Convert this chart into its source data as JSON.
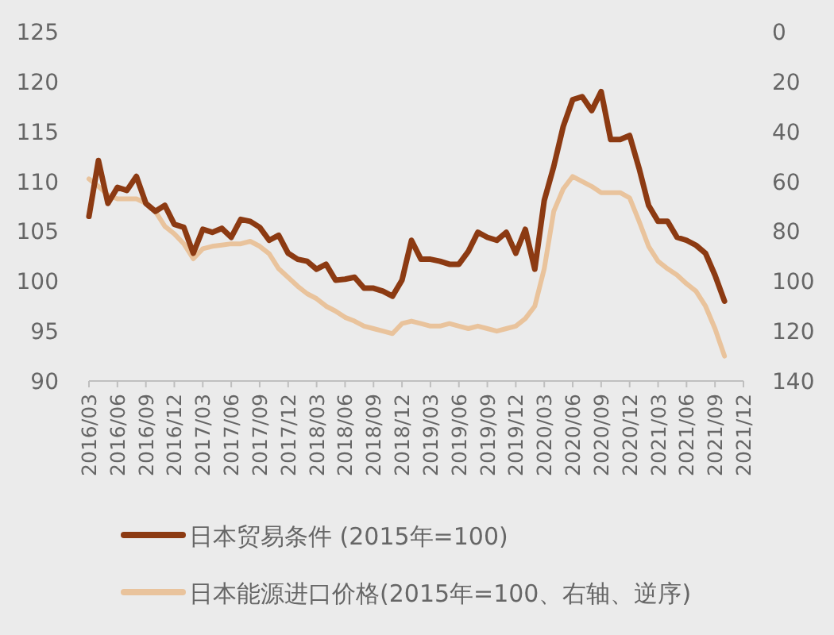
{
  "chart_data": {
    "type": "line",
    "legend": "bottom",
    "x": [
      "2016-03",
      "2016-04",
      "2016-05",
      "2016-06",
      "2016-07",
      "2016-08",
      "2016-09",
      "2016-10",
      "2016-11",
      "2016-12",
      "2017-01",
      "2017-02",
      "2017-03",
      "2017-04",
      "2017-05",
      "2017-06",
      "2017-07",
      "2017-08",
      "2017-09",
      "2017-10",
      "2017-11",
      "2017-12",
      "2018-01",
      "2018-02",
      "2018-03",
      "2018-04",
      "2018-05",
      "2018-06",
      "2018-07",
      "2018-08",
      "2018-09",
      "2018-10",
      "2018-11",
      "2018-12",
      "2019-01",
      "2019-02",
      "2019-03",
      "2019-04",
      "2019-05",
      "2019-06",
      "2019-07",
      "2019-08",
      "2019-09",
      "2019-10",
      "2019-11",
      "2019-12",
      "2020-01",
      "2020-02",
      "2020-03",
      "2020-04",
      "2020-05",
      "2020-06",
      "2020-07",
      "2020-08",
      "2020-09",
      "2020-10",
      "2020-11",
      "2020-12",
      "2021-01",
      "2021-02",
      "2021-03",
      "2021-04",
      "2021-05",
      "2021-06",
      "2021-07",
      "2021-08",
      "2021-09",
      "2021-10"
    ],
    "xlim": [
      "2016-03",
      "2021-12"
    ],
    "xticks": [
      {
        "value": "2016-03",
        "label": "2016/03"
      },
      {
        "value": "2016-06",
        "label": "2016/06"
      },
      {
        "value": "2016-09",
        "label": "2016/09"
      },
      {
        "value": "2016-12",
        "label": "2016/12"
      },
      {
        "value": "2017-03",
        "label": "2017/03"
      },
      {
        "value": "2017-06",
        "label": "2017/06"
      },
      {
        "value": "2017-09",
        "label": "2017/09"
      },
      {
        "value": "2017-12",
        "label": "2017/12"
      },
      {
        "value": "2018-03",
        "label": "2018/03"
      },
      {
        "value": "2018-06",
        "label": "2018/06"
      },
      {
        "value": "2018-09",
        "label": "2018/09"
      },
      {
        "value": "2018-12",
        "label": "2018/12"
      },
      {
        "value": "2019-03",
        "label": "2019/03"
      },
      {
        "value": "2019-06",
        "label": "2019/06"
      },
      {
        "value": "2019-09",
        "label": "2019/09"
      },
      {
        "value": "2019-12",
        "label": "2019/12"
      },
      {
        "value": "2020-03",
        "label": "2020/03"
      },
      {
        "value": "2020-06",
        "label": "2020/06"
      },
      {
        "value": "2020-09",
        "label": "2020/09"
      },
      {
        "value": "2020-12",
        "label": "2020/12"
      },
      {
        "value": "2021-03",
        "label": "2021/03"
      },
      {
        "value": "2021-06",
        "label": "2021/06"
      },
      {
        "value": "2021-09",
        "label": "2021/09"
      },
      {
        "value": "2021-12",
        "label": "2021/12"
      }
    ],
    "ylim": [
      90,
      125
    ],
    "yticks": [
      90,
      95,
      100,
      105,
      110,
      115,
      120,
      125
    ],
    "y2lim": [
      140,
      0
    ],
    "y2ticks": [
      0,
      20,
      40,
      60,
      80,
      100,
      120,
      140
    ],
    "series": [
      {
        "name": "日本能源进口价格(2015年=100、右轴、逆序)",
        "color": "#e9c39c",
        "axis": "y2",
        "values": [
          59,
          62,
          65.5,
          67,
          67,
          67,
          68.7,
          72,
          78,
          81,
          85,
          91,
          87,
          86,
          85.5,
          85,
          85,
          84,
          86,
          89,
          95,
          98.5,
          102,
          105,
          107,
          110,
          112,
          114.5,
          116,
          118,
          119,
          120,
          121,
          117,
          116,
          117,
          118,
          118,
          117,
          118,
          119,
          118,
          119,
          120,
          119,
          118,
          115,
          110,
          95,
          72,
          63,
          58,
          60,
          62,
          64.5,
          64.5,
          64.5,
          66.6,
          76,
          86,
          92,
          95,
          97.5,
          101,
          104,
          110,
          119,
          130
        ]
      },
      {
        "name": "日本贸易条件 (2015年=100)",
        "color": "#8c3a12",
        "values": [
          106.5,
          112.1,
          107.8,
          109.4,
          109.1,
          110.5,
          107.8,
          107,
          107.6,
          105.7,
          105.4,
          102.8,
          105.2,
          104.9,
          105.3,
          104.4,
          106.2,
          106,
          105.4,
          104.1,
          104.6,
          102.8,
          102.2,
          102,
          101.2,
          101.7,
          100.1,
          100.2,
          100.4,
          99.3,
          99.3,
          99,
          98.5,
          100.1,
          104.1,
          102.2,
          102.2,
          102,
          101.7,
          101.7,
          103,
          104.9,
          104.4,
          104.1,
          104.9,
          102.8,
          105.2,
          101.2,
          108.1,
          111.5,
          115.5,
          118.2,
          118.5,
          117.1,
          119,
          114.2,
          114.2,
          114.6,
          111.3,
          107.6,
          106,
          106,
          104.4,
          104.1,
          103.6,
          102.8,
          100.6,
          98
        ]
      }
    ]
  }
}
